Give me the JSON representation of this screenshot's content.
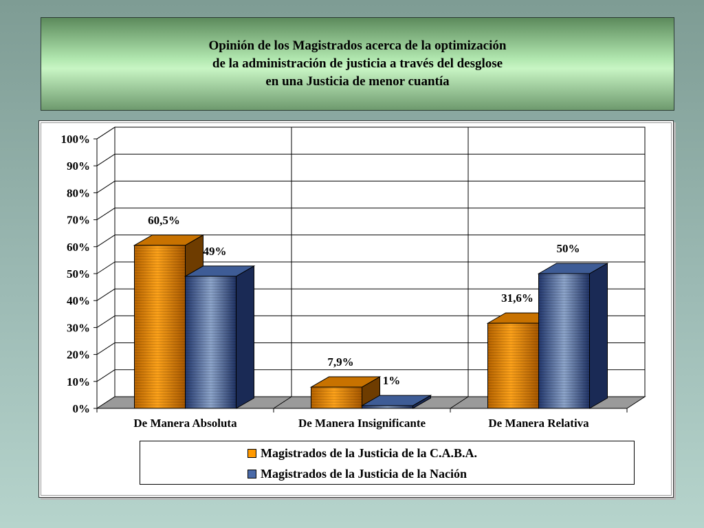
{
  "title": "Opinión de los Magistrados acerca de la optimización\nde la administración de justicia a través del desglose\nen  una Justicia de menor cuantía",
  "chart_data": {
    "type": "bar",
    "categories": [
      "De Manera Absoluta",
      "De Manera Insignificante",
      "De Manera Relativa"
    ],
    "series": [
      {
        "name": "Magistrados de la Justicia de la C.A.B.A.",
        "values": [
          60.5,
          7.9,
          31.6
        ],
        "labels": [
          "60,5%",
          "7,9%",
          "31,6%"
        ],
        "color": "#ff9900"
      },
      {
        "name": "Magistrados de la Justicia de la Nación",
        "values": [
          49,
          1,
          50
        ],
        "labels": [
          "49%",
          "1%",
          "50%"
        ],
        "color": "#2e4a86"
      }
    ],
    "ylim": [
      0,
      100
    ],
    "yticks": [
      "0%",
      "10%",
      "20%",
      "30%",
      "40%",
      "50%",
      "60%",
      "70%",
      "80%",
      "90%",
      "100%"
    ],
    "grid": true,
    "legend_position": "bottom"
  }
}
